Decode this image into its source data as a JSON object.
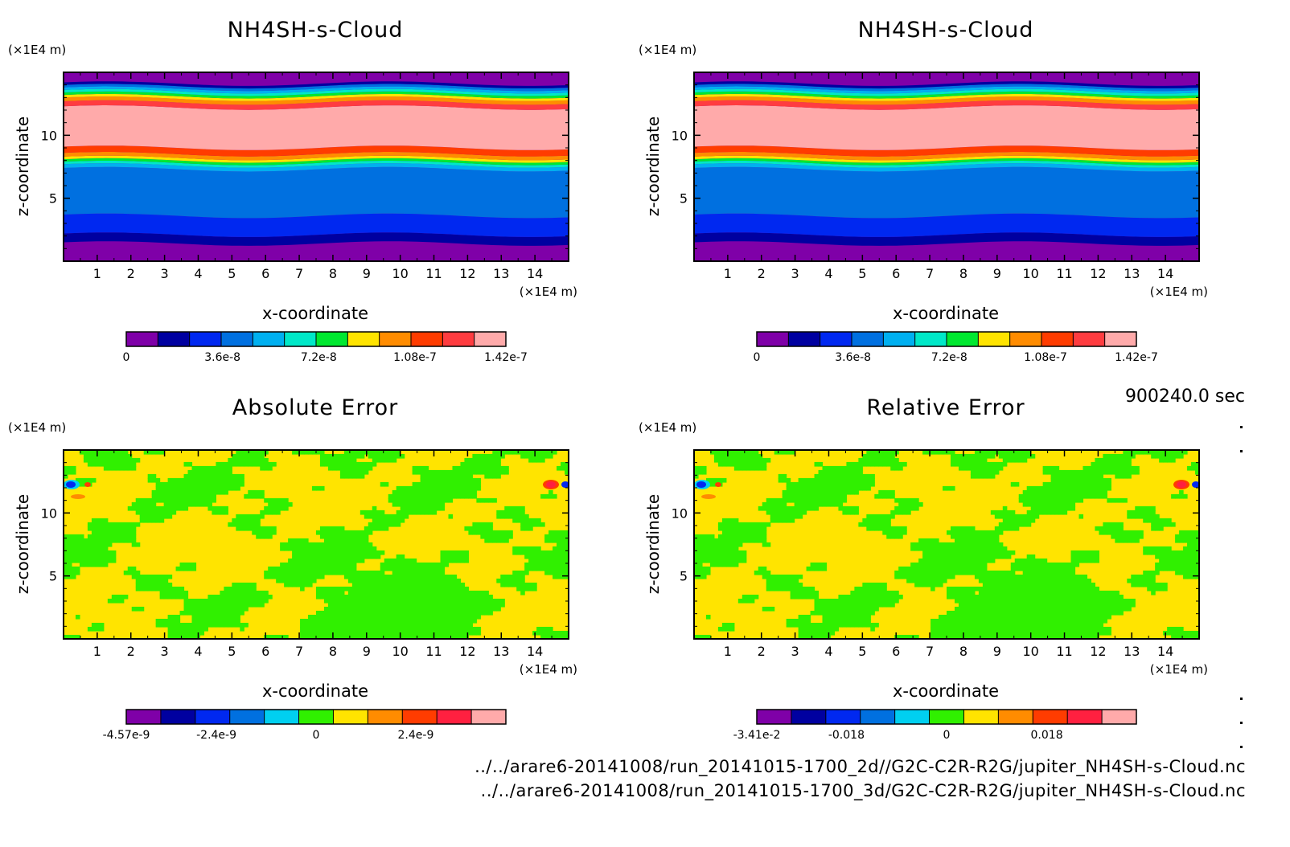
{
  "timestamp": "900240.0 sec",
  "footer": {
    "line1": "../../arare6-20141008/run_20141015-1700_2d//G2C-C2R-R2G/jupiter_NH4SH-s-Cloud.nc",
    "line2": "../../arare6-20141008/run_20141015-1700_3d/G2C-C2R-R2G/jupiter_NH4SH-s-Cloud.nc"
  },
  "chart_data": [
    {
      "type": "heatmap",
      "title": "NH4SH-s-Cloud",
      "xlabel": "x-coordinate",
      "ylabel": "z-coordinate",
      "x_unit": "(×1E4 m)",
      "y_unit": "(×1E4 m)",
      "xlim": [
        0,
        15
      ],
      "ylim": [
        0,
        15
      ],
      "xticks": [
        "1",
        "2",
        "3",
        "4",
        "5",
        "6",
        "7",
        "8",
        "9",
        "10",
        "11",
        "12",
        "13",
        "14"
      ],
      "yticks": [
        "5",
        "10"
      ],
      "pattern": "layers",
      "colorbar": {
        "colors": [
          "#7f00a8",
          "#0000a0",
          "#0028f0",
          "#0070e0",
          "#00b0f0",
          "#00e8c8",
          "#00e830",
          "#ffe400",
          "#ff8c00",
          "#ff3c00",
          "#ff3c40",
          "#ffaaaa"
        ],
        "tick_labels": [
          "0",
          "3.6e-8",
          "7.2e-8",
          "1.08e-7",
          "1.42e-7"
        ],
        "range": [
          0,
          1.42e-07
        ]
      }
    },
    {
      "type": "heatmap",
      "title": "NH4SH-s-Cloud",
      "xlabel": "x-coordinate",
      "ylabel": "z-coordinate",
      "x_unit": "(×1E4 m)",
      "y_unit": "(×1E4 m)",
      "xlim": [
        0,
        15
      ],
      "ylim": [
        0,
        15
      ],
      "xticks": [
        "1",
        "2",
        "3",
        "4",
        "5",
        "6",
        "7",
        "8",
        "9",
        "10",
        "11",
        "12",
        "13",
        "14"
      ],
      "yticks": [
        "5",
        "10"
      ],
      "pattern": "layers",
      "colorbar": {
        "colors": [
          "#7f00a8",
          "#0000a0",
          "#0028f0",
          "#0070e0",
          "#00b0f0",
          "#00e8c8",
          "#00e830",
          "#ffe400",
          "#ff8c00",
          "#ff3c00",
          "#ff3c40",
          "#ffaaaa"
        ],
        "tick_labels": [
          "0",
          "3.6e-8",
          "7.2e-8",
          "1.08e-7",
          "1.42e-7"
        ],
        "range": [
          0,
          1.42e-07
        ]
      }
    },
    {
      "type": "heatmap",
      "title": "Absolute Error",
      "xlabel": "x-coordinate",
      "ylabel": "z-coordinate",
      "x_unit": "(×1E4 m)",
      "y_unit": "(×1E4 m)",
      "xlim": [
        0,
        15
      ],
      "ylim": [
        0,
        15
      ],
      "xticks": [
        "1",
        "2",
        "3",
        "4",
        "5",
        "6",
        "7",
        "8",
        "9",
        "10",
        "11",
        "12",
        "13",
        "14"
      ],
      "yticks": [
        "5",
        "10"
      ],
      "pattern": "error",
      "colorbar": {
        "colors": [
          "#7f00a8",
          "#0000a0",
          "#0028f0",
          "#0070e0",
          "#00d0f0",
          "#30f000",
          "#ffe400",
          "#ff8c00",
          "#ff3c00",
          "#ff2040",
          "#ffaaaa"
        ],
        "tick_labels": [
          "-4.57e-9",
          "-2.4e-9",
          "0",
          "2.4e-9"
        ],
        "range": [
          -4.57e-09,
          4.57e-09
        ]
      }
    },
    {
      "type": "heatmap",
      "title": "Relative Error",
      "xlabel": "x-coordinate",
      "ylabel": "z-coordinate",
      "x_unit": "(×1E4 m)",
      "y_unit": "(×1E4 m)",
      "xlim": [
        0,
        15
      ],
      "ylim": [
        0,
        15
      ],
      "xticks": [
        "1",
        "2",
        "3",
        "4",
        "5",
        "6",
        "7",
        "8",
        "9",
        "10",
        "11",
        "12",
        "13",
        "14"
      ],
      "yticks": [
        "5",
        "10"
      ],
      "pattern": "error",
      "colorbar": {
        "colors": [
          "#7f00a8",
          "#0000a0",
          "#0028f0",
          "#0070e0",
          "#00d0f0",
          "#30f000",
          "#ffe400",
          "#ff8c00",
          "#ff3c00",
          "#ff2040",
          "#ffaaaa"
        ],
        "tick_labels": [
          "-3.41e-2",
          "-0.018",
          "0",
          "0.018"
        ],
        "range": [
          -0.0341,
          0.0341
        ]
      }
    }
  ]
}
